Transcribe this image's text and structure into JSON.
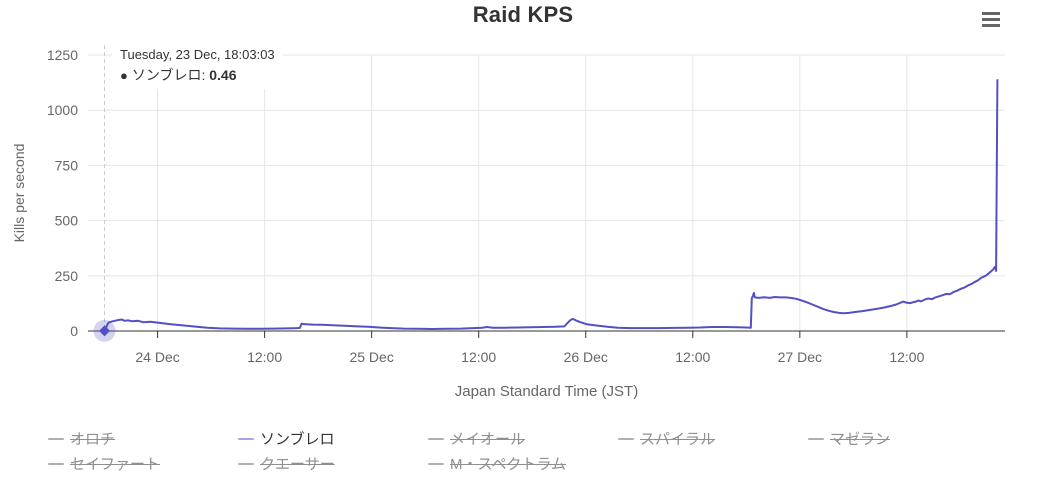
{
  "header": {
    "title": "Raid KPS",
    "menu_icon": "hamburger-icon"
  },
  "tooltip": {
    "header": "Tuesday, 23 Dec, 18:03:03",
    "bullet": "●",
    "series_name": "ソンブレロ",
    "separator": ": ",
    "value": "0.46"
  },
  "colors": {
    "series": "#544fc5",
    "marker_halo": "rgba(84,79,197,0.25)",
    "legend_active_marker": "#a9a4e6",
    "legend_hidden_marker": "#b0b0b0",
    "grid": "#e6e6e6",
    "axis": "#333333",
    "label": "#666666",
    "title": "#333333",
    "crosshair": "#cccccc",
    "tooltip_text": "#333333"
  },
  "chart_data": {
    "type": "line",
    "title": "Raid KPS",
    "xlabel": "Japan Standard Time (JST)",
    "ylabel": "Kills per second",
    "ylim": [
      0,
      1250
    ],
    "yticks": [
      0,
      250,
      500,
      750,
      1000,
      1250
    ],
    "x_unit": "hours since 23 Dec 00:00 JST",
    "xlim": [
      16.2,
      119.0
    ],
    "xticks": [
      {
        "t": 24,
        "label": "24 Dec"
      },
      {
        "t": 36,
        "label": "12:00"
      },
      {
        "t": 48,
        "label": "25 Dec"
      },
      {
        "t": 60,
        "label": "12:00"
      },
      {
        "t": 72,
        "label": "26 Dec"
      },
      {
        "t": 84,
        "label": "12:00"
      },
      {
        "t": 96,
        "label": "27 Dec"
      },
      {
        "t": 108,
        "label": "12:00"
      }
    ],
    "grid": true,
    "legend_position": "bottom-left",
    "legend_columns": 5,
    "hover_point": {
      "t": 18.05,
      "value": 0.46
    },
    "series": [
      {
        "name": "オロチ",
        "visible": false
      },
      {
        "name": "ソンブレロ",
        "visible": true,
        "color": "#544fc5",
        "data": [
          [
            18.05,
            0.46
          ],
          [
            18.15,
            8
          ],
          [
            18.3,
            22
          ],
          [
            18.5,
            38
          ],
          [
            18.8,
            42
          ],
          [
            19.2,
            46
          ],
          [
            19.6,
            50
          ],
          [
            20.0,
            52
          ],
          [
            20.3,
            46
          ],
          [
            20.7,
            48
          ],
          [
            21.2,
            44
          ],
          [
            21.8,
            46
          ],
          [
            22.4,
            40
          ],
          [
            23.2,
            42
          ],
          [
            24.0,
            38
          ],
          [
            24.8,
            34
          ],
          [
            25.6,
            30
          ],
          [
            26.4,
            27
          ],
          [
            27.4,
            23
          ],
          [
            28.4,
            19
          ],
          [
            29.6,
            15
          ],
          [
            31.0,
            12
          ],
          [
            32.5,
            11
          ],
          [
            34.0,
            10
          ],
          [
            35.5,
            10
          ],
          [
            37.0,
            11
          ],
          [
            38.5,
            12
          ],
          [
            39.6,
            13
          ],
          [
            39.95,
            14
          ],
          [
            40.15,
            33
          ],
          [
            40.6,
            31
          ],
          [
            41.4,
            29
          ],
          [
            42.4,
            28
          ],
          [
            43.6,
            26
          ],
          [
            45.0,
            24
          ],
          [
            46.4,
            21
          ],
          [
            47.6,
            19
          ],
          [
            48.8,
            16
          ],
          [
            50.2,
            13
          ],
          [
            51.6,
            11
          ],
          [
            53.2,
            10
          ],
          [
            54.8,
            9
          ],
          [
            56.4,
            10
          ],
          [
            58.0,
            11
          ],
          [
            59.4,
            13
          ],
          [
            60.4,
            15
          ],
          [
            60.9,
            18
          ],
          [
            61.6,
            15
          ],
          [
            63.0,
            15
          ],
          [
            64.4,
            16
          ],
          [
            65.8,
            17
          ],
          [
            67.2,
            18
          ],
          [
            68.6,
            19
          ],
          [
            69.6,
            21
          ],
          [
            70.0,
            38
          ],
          [
            70.3,
            50
          ],
          [
            70.55,
            55
          ],
          [
            70.9,
            48
          ],
          [
            71.4,
            40
          ],
          [
            72.2,
            30
          ],
          [
            73.2,
            25
          ],
          [
            74.4,
            19
          ],
          [
            75.6,
            15
          ],
          [
            77.0,
            13
          ],
          [
            78.6,
            13
          ],
          [
            80.2,
            13
          ],
          [
            81.8,
            14
          ],
          [
            83.4,
            15
          ],
          [
            84.8,
            16
          ],
          [
            86.2,
            18
          ],
          [
            87.6,
            18
          ],
          [
            89.0,
            17
          ],
          [
            90.0,
            16
          ],
          [
            90.5,
            15
          ],
          [
            90.62,
            148
          ],
          [
            90.75,
            160
          ],
          [
            90.85,
            172
          ],
          [
            90.95,
            152
          ],
          [
            91.4,
            150
          ],
          [
            92.0,
            153
          ],
          [
            92.6,
            150
          ],
          [
            93.2,
            154
          ],
          [
            93.8,
            152
          ],
          [
            94.4,
            152
          ],
          [
            95.0,
            150
          ],
          [
            95.6,
            146
          ],
          [
            96.2,
            138
          ],
          [
            96.8,
            130
          ],
          [
            97.4,
            120
          ],
          [
            98.0,
            110
          ],
          [
            98.6,
            100
          ],
          [
            99.2,
            92
          ],
          [
            99.8,
            86
          ],
          [
            100.4,
            82
          ],
          [
            100.9,
            80
          ],
          [
            101.5,
            82
          ],
          [
            102.2,
            86
          ],
          [
            103.0,
            90
          ],
          [
            103.8,
            95
          ],
          [
            104.6,
            100
          ],
          [
            105.4,
            106
          ],
          [
            106.2,
            113
          ],
          [
            106.8,
            120
          ],
          [
            107.3,
            128
          ],
          [
            107.6,
            133
          ],
          [
            107.9,
            129
          ],
          [
            108.3,
            126
          ],
          [
            108.6,
            129
          ],
          [
            109.0,
            133
          ],
          [
            109.3,
            138
          ],
          [
            109.6,
            134
          ],
          [
            110.0,
            142
          ],
          [
            110.4,
            147
          ],
          [
            110.8,
            144
          ],
          [
            111.2,
            152
          ],
          [
            111.6,
            157
          ],
          [
            112.0,
            162
          ],
          [
            112.4,
            168
          ],
          [
            112.8,
            166
          ],
          [
            113.2,
            176
          ],
          [
            113.6,
            182
          ],
          [
            114.0,
            190
          ],
          [
            114.4,
            196
          ],
          [
            114.8,
            205
          ],
          [
            115.2,
            212
          ],
          [
            115.6,
            222
          ],
          [
            116.0,
            230
          ],
          [
            116.3,
            240
          ],
          [
            116.6,
            246
          ],
          [
            116.9,
            252
          ],
          [
            117.2,
            262
          ],
          [
            117.5,
            272
          ],
          [
            117.7,
            280
          ],
          [
            117.85,
            290
          ],
          [
            117.95,
            286
          ],
          [
            118.0,
            272
          ],
          [
            118.15,
            1140
          ]
        ]
      },
      {
        "name": "メイオール",
        "visible": false
      },
      {
        "name": "スパイラル",
        "visible": false
      },
      {
        "name": "マゼラン",
        "visible": false
      },
      {
        "name": "セイファート",
        "visible": false
      },
      {
        "name": "クエーサー",
        "visible": false
      },
      {
        "name": "M・スペクトラム",
        "visible": false
      }
    ]
  }
}
